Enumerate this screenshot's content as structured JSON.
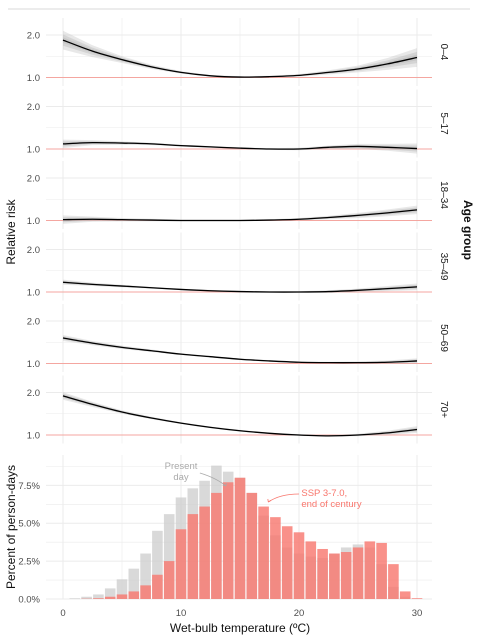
{
  "chart_data": [
    {
      "type": "line",
      "facet_axis_title": "Relative risk",
      "facet_legend_title": "Age group",
      "x_range": [
        0,
        30
      ],
      "ylim": [
        0.8,
        2.4
      ],
      "y_ticks": [
        1.0,
        2.0
      ],
      "y_tick_labels": [
        "1.0",
        "2.0"
      ],
      "reference_line": 1.0,
      "x": [
        0,
        2.5,
        5,
        7.5,
        10,
        12.5,
        15,
        17.5,
        20,
        22.5,
        25,
        27.5,
        30
      ],
      "panels": [
        {
          "label": "0–4",
          "values": [
            1.88,
            1.62,
            1.42,
            1.25,
            1.12,
            1.04,
            1.01,
            1.02,
            1.05,
            1.12,
            1.2,
            1.32,
            1.47
          ],
          "ci_half_width": [
            0.22,
            0.14,
            0.08,
            0.05,
            0.03,
            0.02,
            0.02,
            0.02,
            0.03,
            0.05,
            0.08,
            0.14,
            0.22
          ]
        },
        {
          "label": "5–17",
          "values": [
            1.12,
            1.15,
            1.14,
            1.12,
            1.08,
            1.05,
            1.02,
            1.0,
            1.0,
            1.04,
            1.06,
            1.04,
            1.01
          ],
          "ci_half_width": [
            0.1,
            0.06,
            0.04,
            0.03,
            0.02,
            0.02,
            0.02,
            0.02,
            0.03,
            0.04,
            0.06,
            0.08,
            0.12
          ]
        },
        {
          "label": "18–34",
          "values": [
            1.02,
            1.03,
            1.02,
            1.01,
            1.0,
            1.0,
            1.0,
            1.01,
            1.03,
            1.07,
            1.12,
            1.18,
            1.25
          ],
          "ci_half_width": [
            0.1,
            0.06,
            0.04,
            0.03,
            0.02,
            0.02,
            0.02,
            0.02,
            0.03,
            0.04,
            0.06,
            0.08,
            0.1
          ]
        },
        {
          "label": "35–49",
          "values": [
            1.23,
            1.18,
            1.14,
            1.1,
            1.06,
            1.03,
            1.01,
            1.0,
            1.0,
            1.01,
            1.04,
            1.08,
            1.12
          ],
          "ci_half_width": [
            0.06,
            0.04,
            0.03,
            0.02,
            0.02,
            0.02,
            0.02,
            0.02,
            0.02,
            0.03,
            0.04,
            0.06,
            0.08
          ]
        },
        {
          "label": "50–69",
          "values": [
            1.6,
            1.48,
            1.38,
            1.3,
            1.22,
            1.16,
            1.1,
            1.06,
            1.03,
            1.02,
            1.02,
            1.03,
            1.06
          ],
          "ci_half_width": [
            0.07,
            0.05,
            0.04,
            0.03,
            0.02,
            0.02,
            0.02,
            0.02,
            0.02,
            0.02,
            0.03,
            0.04,
            0.06
          ]
        },
        {
          "label": "70+",
          "values": [
            1.92,
            1.72,
            1.54,
            1.4,
            1.28,
            1.18,
            1.1,
            1.04,
            1.0,
            0.98,
            1.0,
            1.05,
            1.13
          ],
          "ci_half_width": [
            0.09,
            0.06,
            0.04,
            0.03,
            0.02,
            0.02,
            0.02,
            0.02,
            0.02,
            0.02,
            0.03,
            0.05,
            0.08
          ]
        }
      ]
    },
    {
      "type": "bar",
      "xlabel": "Wet-bulb temperature (ºC)",
      "ylabel": "Percent of person-days",
      "x_ticks": [
        0,
        10,
        20,
        30
      ],
      "x_tick_labels": [
        "0",
        "10",
        "20",
        "30"
      ],
      "ylim": [
        0,
        9.5
      ],
      "y_ticks": [
        0,
        2.5,
        5.0,
        7.5
      ],
      "y_tick_labels": [
        "0.0%",
        "2.5%",
        "5.0%",
        "7.5%"
      ],
      "bin_width": 1,
      "bin_centers": [
        1,
        2,
        3,
        4,
        5,
        6,
        7,
        8,
        9,
        10,
        11,
        12,
        13,
        14,
        15,
        16,
        17,
        18,
        19,
        20,
        21,
        22,
        23,
        24,
        25,
        26,
        27,
        28,
        29,
        30
      ],
      "series": [
        {
          "name": "Present day",
          "color": "#cccccc",
          "opacity": 0.75,
          "values": [
            0.05,
            0.15,
            0.3,
            0.7,
            1.3,
            2.0,
            3.0,
            4.5,
            5.6,
            6.7,
            7.3,
            7.8,
            8.8,
            8.4,
            8.0,
            7.0,
            5.5,
            4.2,
            3.4,
            3.0,
            2.8,
            2.7,
            3.0,
            3.4,
            3.6,
            3.4,
            2.3,
            0.8,
            0.15,
            0.02
          ]
        },
        {
          "name": "SSP 3-7.0,\nend of century",
          "color": "#f8766d",
          "opacity": 0.8,
          "values": [
            0.0,
            0.02,
            0.05,
            0.15,
            0.3,
            0.5,
            0.9,
            1.6,
            2.5,
            4.6,
            5.6,
            6.1,
            7.0,
            7.7,
            8.0,
            7.0,
            6.1,
            5.4,
            4.8,
            4.4,
            3.8,
            3.3,
            3.0,
            3.1,
            3.4,
            3.8,
            3.7,
            2.3,
            0.5,
            0.05
          ]
        }
      ],
      "annotations": [
        {
          "text": "Present\nday",
          "series": "Present day",
          "color": "#aaaaaa"
        },
        {
          "text": "SSP 3-7.0,\nend of century",
          "series": "SSP 3-7.0,\nend of century",
          "color": "#f8766d"
        }
      ]
    }
  ]
}
